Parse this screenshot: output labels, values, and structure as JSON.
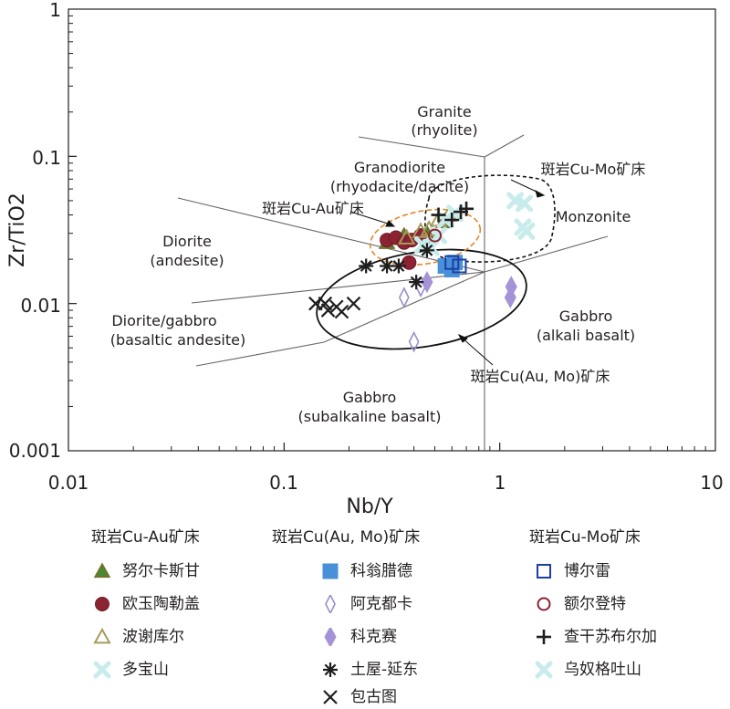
{
  "chart_data": {
    "type": "scatter",
    "xscale": "log",
    "yscale": "log",
    "xlabel": "Nb/Y",
    "ylabel": "Zr/TiO2",
    "xlim": [
      0.01,
      10
    ],
    "ylim": [
      0.001,
      1
    ],
    "xticks": [
      "0.01",
      "0.1",
      "1",
      "10"
    ],
    "yticks": [
      "0.001",
      "0.01",
      "0.1",
      "1"
    ],
    "field_labels": {
      "granite": [
        "Granite",
        "(rhyolite)"
      ],
      "granodiorite": [
        "Granodiorite",
        "(rhyodacite/dacite)"
      ],
      "monzonite": [
        "Monzonite"
      ],
      "diorite": [
        "Diorite",
        "(andesite)"
      ],
      "diorite_gabbro": [
        "Diorite/gabbro",
        "(basaltic andesite)"
      ],
      "gabbro_alkali": [
        "Gabbro",
        "(alkali basalt)"
      ],
      "gabbro_subalkaline": [
        "Gabbro",
        "(subalkaline basalt)"
      ]
    },
    "annotations": {
      "cu_mo": "斑岩Cu-Mo矿床",
      "cu_au": "斑岩Cu-Au矿床",
      "cu_au_mo": "斑岩Cu(Au, Mo)矿床"
    },
    "groups": [
      {
        "title": "斑岩Cu-Au矿床",
        "series": [
          {
            "name": "努尔卡斯甘",
            "marker": "triangle-filled",
            "fill": "#4a8a2e",
            "stroke": "#7a6a30",
            "points": [
              [
                0.3,
                0.026
              ],
              [
                0.36,
                0.029
              ],
              [
                0.42,
                0.029
              ],
              [
                0.46,
                0.03
              ],
              [
                0.55,
                0.036
              ]
            ]
          },
          {
            "name": "欧玉陶勒盖",
            "marker": "circle-filled",
            "fill": "#8b2332",
            "stroke": "#6e1a26",
            "points": [
              [
                0.3,
                0.027
              ],
              [
                0.33,
                0.028
              ],
              [
                0.36,
                0.026
              ],
              [
                0.38,
                0.019
              ],
              [
                0.39,
                0.027
              ],
              [
                0.43,
                0.029
              ]
            ]
          },
          {
            "name": "波谢库尔",
            "marker": "triangle-open",
            "fill": "none",
            "stroke": "#a89a5c",
            "points": [
              [
                0.37,
                0.028
              ],
              [
                0.43,
                0.031
              ],
              [
                0.47,
                0.032
              ],
              [
                0.52,
                0.037
              ],
              [
                0.58,
                0.04
              ]
            ]
          },
          {
            "name": "多宝山",
            "marker": "cross-x",
            "fill": "none",
            "stroke": "#c8ecec",
            "points": [
              [
                0.44,
                0.025
              ],
              [
                0.48,
                0.024
              ],
              [
                0.52,
                0.029
              ],
              [
                0.56,
                0.037
              ],
              [
                0.62,
                0.041
              ]
            ]
          }
        ]
      },
      {
        "title": "斑岩Cu(Au, Mo)矿床",
        "series": [
          {
            "name": "科翁腊德",
            "marker": "square-filled",
            "fill": "#4a90d9",
            "stroke": "#4a90d9",
            "points": [
              [
                0.56,
                0.018
              ],
              [
                0.6,
                0.017
              ],
              [
                0.62,
                0.019
              ]
            ]
          },
          {
            "name": "阿克都卡",
            "marker": "diamond-open",
            "fill": "none",
            "stroke": "#9a8ec8",
            "points": [
              [
                0.36,
                0.011
              ],
              [
                0.4,
                0.0055
              ],
              [
                0.43,
                0.013
              ]
            ]
          },
          {
            "name": "科克赛",
            "marker": "diamond-filled",
            "fill": "#a493d6",
            "stroke": "#a493d6",
            "points": [
              [
                0.46,
                0.014
              ],
              [
                1.12,
                0.011
              ],
              [
                1.13,
                0.013
              ]
            ]
          },
          {
            "name": "土屋-延东",
            "marker": "asterisk",
            "fill": "none",
            "stroke": "#1e1e1e",
            "points": [
              [
                0.24,
                0.018
              ],
              [
                0.3,
                0.018
              ],
              [
                0.34,
                0.018
              ],
              [
                0.41,
                0.014
              ],
              [
                0.46,
                0.023
              ]
            ]
          },
          {
            "name": "包古图",
            "marker": "x",
            "fill": "none",
            "stroke": "#1e1e1e",
            "points": [
              [
                0.14,
                0.01
              ],
              [
                0.155,
                0.01
              ],
              [
                0.16,
                0.009
              ],
              [
                0.175,
                0.0095
              ],
              [
                0.185,
                0.0088
              ],
              [
                0.21,
                0.01
              ]
            ]
          }
        ]
      },
      {
        "title": "斑岩Cu-Mo矿床",
        "series": [
          {
            "name": "博尔雷",
            "marker": "square-open",
            "fill": "none",
            "stroke": "#1b3fa5",
            "points": [
              [
                0.6,
                0.019
              ],
              [
                0.65,
                0.018
              ]
            ]
          },
          {
            "name": "额尔登特",
            "marker": "circle-open",
            "fill": "none",
            "stroke": "#8b2332",
            "points": [
              [
                0.5,
                0.029
              ]
            ]
          },
          {
            "name": "查干苏布尔加",
            "marker": "plus",
            "fill": "none",
            "stroke": "#1e1e1e",
            "points": [
              [
                0.52,
                0.04
              ],
              [
                0.6,
                0.037
              ],
              [
                0.66,
                0.042
              ],
              [
                0.7,
                0.044
              ]
            ]
          },
          {
            "name": "乌奴格吐山",
            "marker": "cross-x",
            "fill": "none",
            "stroke": "#c8ecec",
            "points": [
              [
                1.18,
                0.05
              ],
              [
                1.3,
                0.048
              ],
              [
                1.28,
                0.033
              ],
              [
                1.33,
                0.031
              ]
            ]
          }
        ]
      }
    ]
  }
}
